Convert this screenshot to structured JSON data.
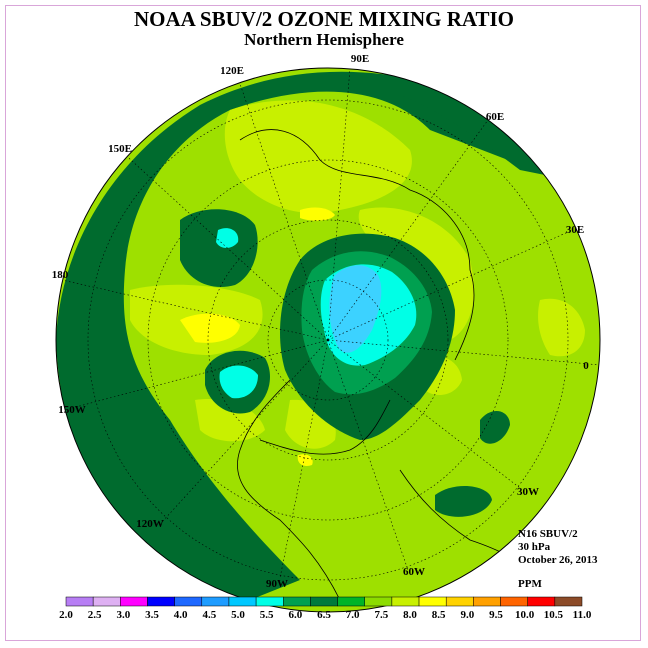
{
  "title": "NOAA SBUV/2 OZONE MIXING RATIO",
  "subtitle": "Northern Hemisphere",
  "longitude_labels": [
    "90E",
    "60E",
    "30E",
    "0",
    "30W",
    "60W",
    "90W",
    "120W",
    "150W",
    "180",
    "150E",
    "120E"
  ],
  "info": {
    "instrument": "N16 SBUV/2",
    "level": "30 hPa",
    "date": "October 26, 2013",
    "units": "PPM"
  },
  "legend": {
    "ticks": [
      "2.0",
      "2.5",
      "3.0",
      "3.5",
      "4.0",
      "4.5",
      "5.0",
      "5.5",
      "6.0",
      "6.5",
      "7.0",
      "7.5",
      "8.0",
      "8.5",
      "9.0",
      "9.5",
      "10.0",
      "10.5",
      "11.0"
    ],
    "colors": [
      "#b77ef4",
      "#deb0f2",
      "#ff00ff",
      "#0000ff",
      "#1e68ff",
      "#1e9cff",
      "#00c8ff",
      "#00ffe6",
      "#00a050",
      "#007a3c",
      "#00b428",
      "#8cdc00",
      "#c8f000",
      "#ffff00",
      "#ffd200",
      "#ffa000",
      "#ff6400",
      "#ff0000",
      "#8c4b28"
    ]
  },
  "colors": {
    "dark_green": "#006b2e",
    "mid_green": "#00a050",
    "lime": "#9ee000",
    "yellow_green": "#c8f000",
    "yellow": "#ffff00",
    "cyan": "#00ffe6",
    "light_blue": "#3cd2ff"
  }
}
